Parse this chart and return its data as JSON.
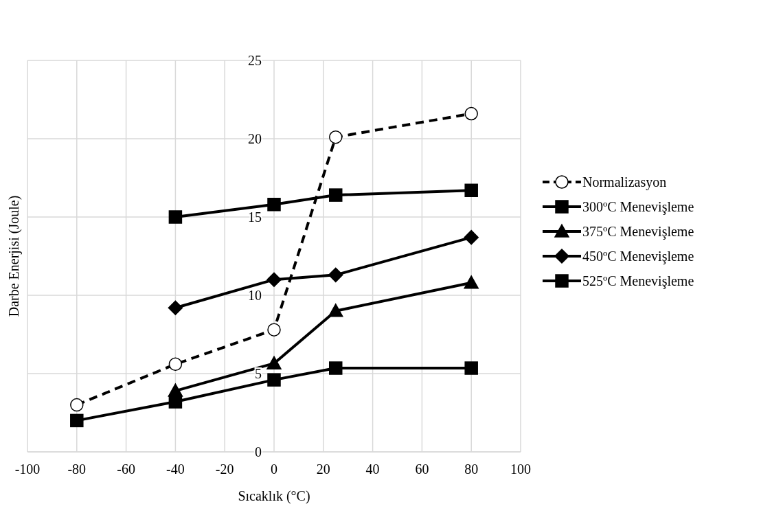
{
  "chart_data": {
    "type": "line",
    "xlabel": "Sıcaklık (°C)",
    "ylabel": "Darbe Enerjisi (Joule)",
    "xlim": [
      -100,
      100
    ],
    "xticks": [
      -100,
      -80,
      -60,
      -40,
      -20,
      0,
      20,
      40,
      60,
      80,
      100
    ],
    "ylim": [
      0,
      25
    ],
    "yticks": [
      0,
      5,
      10,
      15,
      20,
      25
    ],
    "grid": true,
    "legend": "right",
    "series": [
      {
        "name": "Normalizasyon",
        "color": "#000000",
        "line_style": "dashed",
        "marker": "circle",
        "x": [
          -80,
          -40,
          0,
          25,
          80
        ],
        "values": [
          3.0,
          5.6,
          7.8,
          20.1,
          21.6
        ]
      },
      {
        "name": "300ºC Menevişleme",
        "color": "#000000",
        "line_style": "solid",
        "marker": "square",
        "x": [
          -80,
          -40,
          0,
          25,
          80
        ],
        "values": [
          2.0,
          3.2,
          4.6,
          5.35,
          5.35
        ]
      },
      {
        "name": "375ºC Menevişleme",
        "color": "#000000",
        "line_style": "solid",
        "marker": "triangle",
        "x": [
          -40,
          0,
          25,
          80
        ],
        "values": [
          3.9,
          5.65,
          9.0,
          10.8
        ]
      },
      {
        "name": "450ºC Menevişleme",
        "color": "#000000",
        "line_style": "solid",
        "marker": "diamond",
        "x": [
          -40,
          0,
          25,
          80
        ],
        "values": [
          9.2,
          11.0,
          11.3,
          13.7
        ]
      },
      {
        "name": "525ºC Menevişleme",
        "color": "#000000",
        "line_style": "solid",
        "marker": "square",
        "x": [
          -40,
          0,
          25,
          80
        ],
        "values": [
          15.0,
          15.8,
          16.4,
          16.7
        ]
      }
    ]
  }
}
